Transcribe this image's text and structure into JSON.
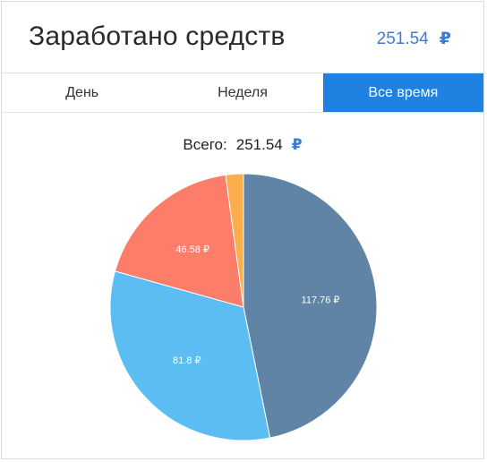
{
  "header": {
    "title": "Заработано средств",
    "total": "251.54",
    "currency": "₽"
  },
  "tabs": [
    {
      "label": "День",
      "active": false
    },
    {
      "label": "Неделя",
      "active": false
    },
    {
      "label": "Все время",
      "active": true
    }
  ],
  "summary": {
    "label": "Всего:",
    "value": "251.54",
    "currency": "₽"
  },
  "colors": {
    "accent": "#1f82e0",
    "currency": "#3d7dd1"
  },
  "chart_data": {
    "type": "pie",
    "title": "",
    "series": [
      {
        "name": "",
        "value": 117.76,
        "label": "117.76 ₽",
        "color": "#5f84a6"
      },
      {
        "name": "",
        "value": 81.8,
        "label": "81.8 ₽",
        "color": "#5bbdf1"
      },
      {
        "name": "",
        "value": 46.58,
        "label": "46.58 ₽",
        "color": "#fb7d6a"
      },
      {
        "name": "",
        "value": 5.4,
        "label": "",
        "color": "#fcae4d"
      }
    ]
  }
}
